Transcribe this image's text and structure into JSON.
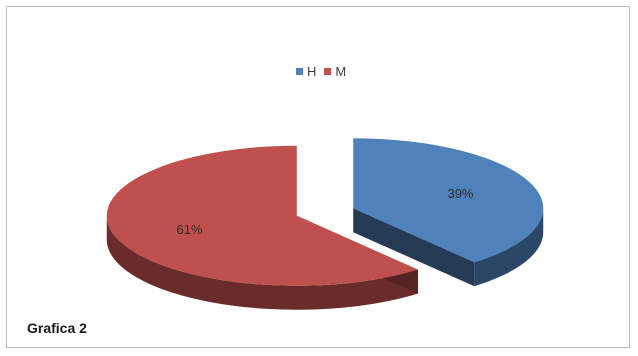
{
  "chart_data": {
    "type": "pie",
    "categories": [
      "H",
      "M"
    ],
    "values": [
      39,
      61
    ],
    "labels": [
      "39%",
      "61%"
    ],
    "colors": [
      "#4f81bd",
      "#c0504d"
    ],
    "legend_position": "top",
    "exploded": true
  },
  "caption": "Grafica 2"
}
